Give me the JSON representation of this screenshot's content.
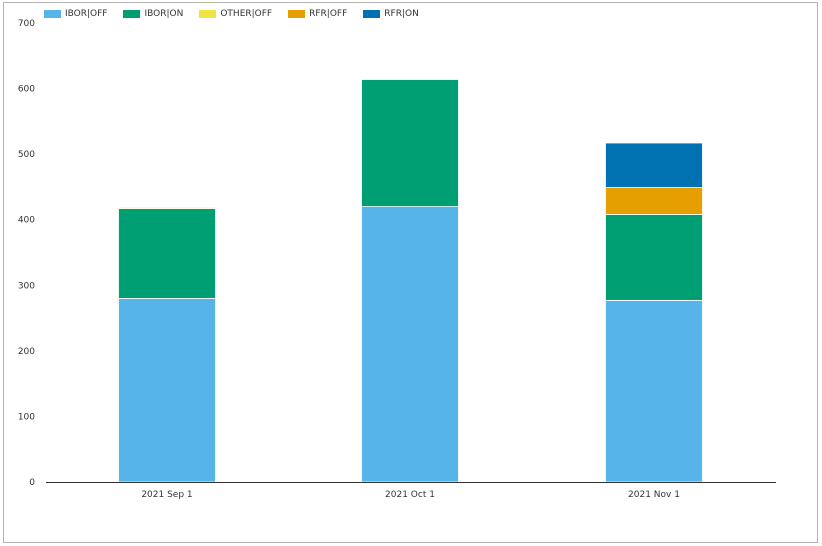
{
  "chart_data": {
    "type": "bar",
    "stacked": true,
    "categories": [
      "2021 Sep 1",
      "2021 Oct 1",
      "2021 Nov 1"
    ],
    "series": [
      {
        "name": "IBOR|OFF",
        "color": "#56b4e9",
        "values": [
          280,
          420,
          277
        ]
      },
      {
        "name": "IBOR|ON",
        "color": "#009e73",
        "values": [
          137,
          194,
          131
        ]
      },
      {
        "name": "OTHER|OFF",
        "color": "#f0e442",
        "values": [
          2,
          1,
          0
        ]
      },
      {
        "name": "RFR|OFF",
        "color": "#e69f00",
        "values": [
          1,
          1,
          41
        ]
      },
      {
        "name": "RFR|ON",
        "color": "#0072b2",
        "values": [
          0,
          0,
          68
        ]
      }
    ],
    "ylim": [
      0,
      700
    ],
    "yticks": [
      0,
      100,
      200,
      300,
      400,
      500,
      600,
      700
    ],
    "grid": false,
    "legend": "top-left"
  }
}
